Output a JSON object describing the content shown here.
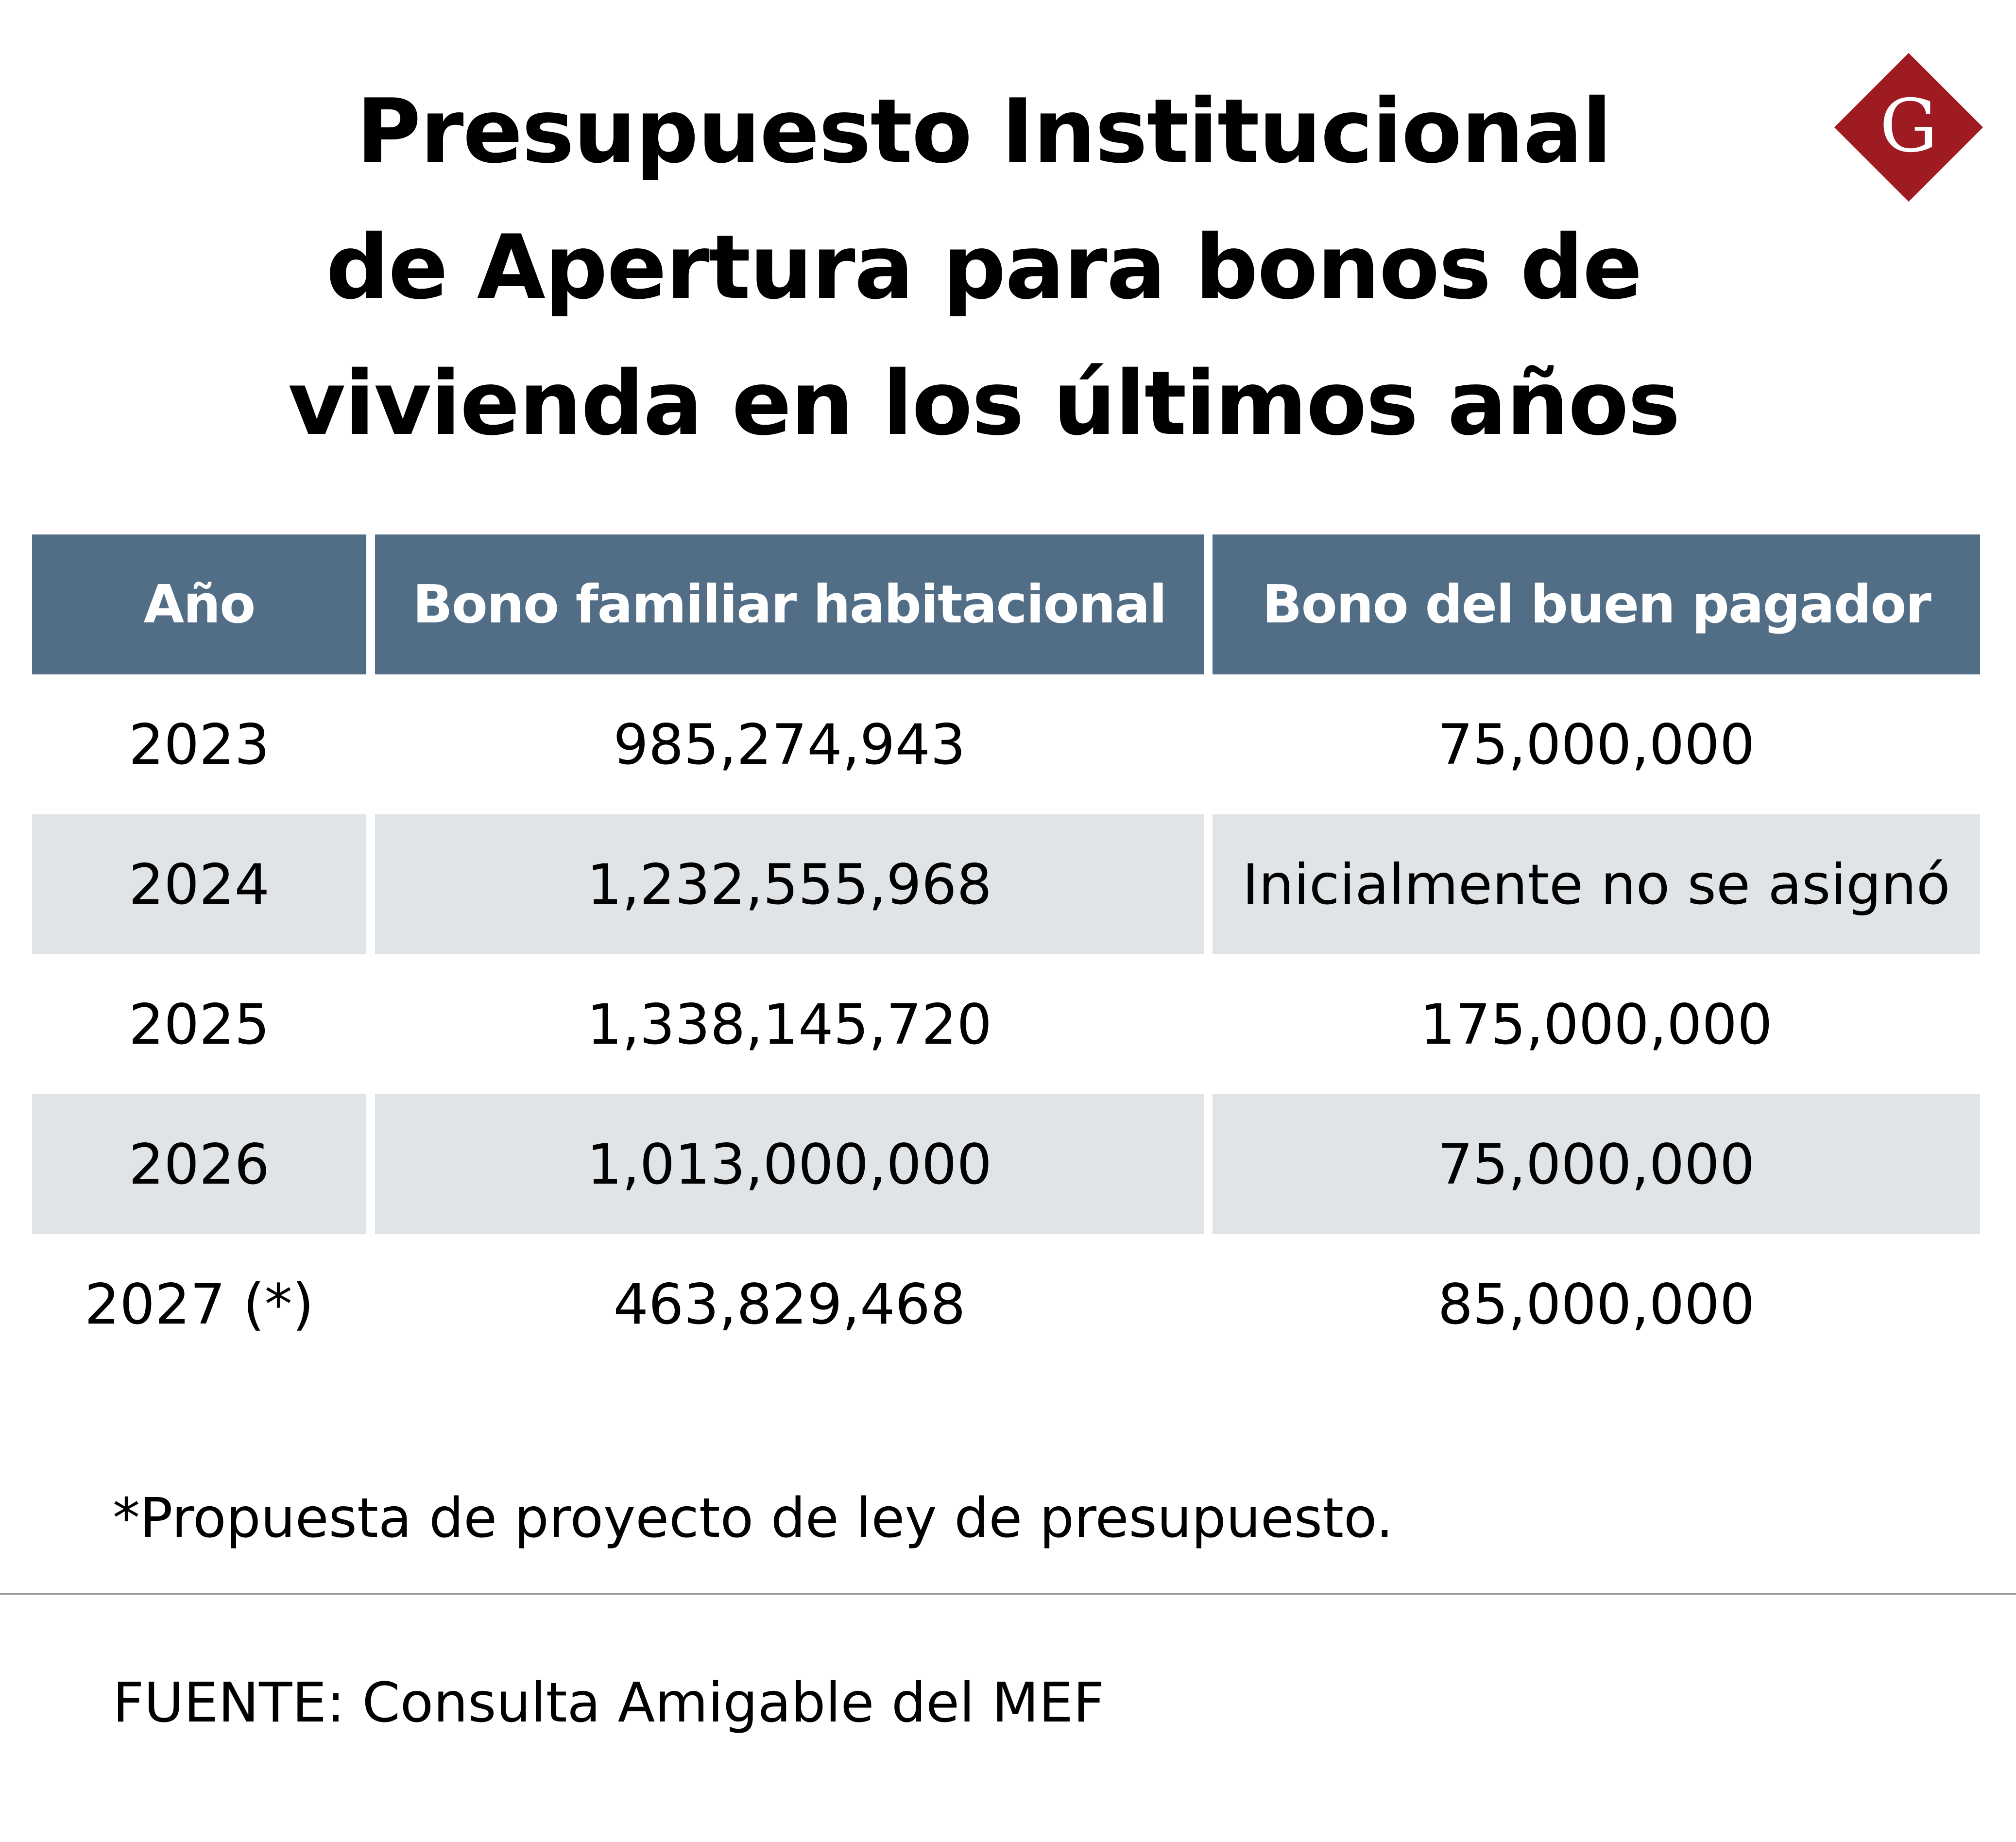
{
  "title_lines": [
    "Presupuesto Institucional",
    "de Apertura para bonos de",
    "vivienda en los últimos años"
  ],
  "logo": {
    "letter": "G",
    "icon": "gestion-logo-icon",
    "color": "#9e1b22"
  },
  "colors": {
    "header_bg": "#526e87",
    "header_text": "#ffffff",
    "stripe_bg": "#e0e4e7"
  },
  "chart_data": {
    "type": "table",
    "columns": [
      "Año",
      "Bono familiar habitacional",
      "Bono del buen pagador"
    ],
    "rows": [
      [
        "2023",
        "985,274,943",
        "75,000,000"
      ],
      [
        "2024",
        "1,232,555,968",
        "Inicialmente no se asignó"
      ],
      [
        "2025",
        "1,338,145,720",
        "175,000,000"
      ],
      [
        "2026",
        "1,013,000,000",
        "75,000,000"
      ],
      [
        "2027 (*)",
        "463,829,468",
        "85,000,000"
      ]
    ]
  },
  "note": "*Propuesta de proyecto de ley de presupuesto.",
  "source": "FUENTE: Consulta Amigable del MEF"
}
